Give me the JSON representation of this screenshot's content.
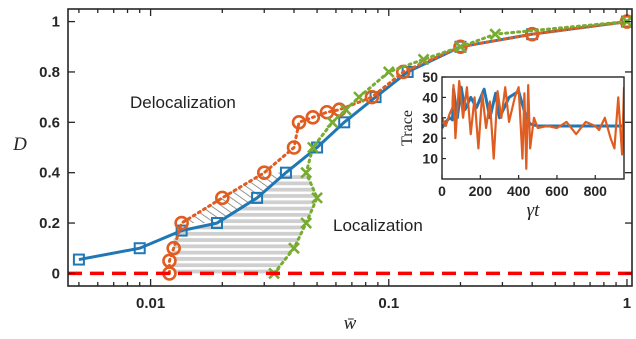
{
  "chart_data": [
    {
      "type": "line",
      "title": "",
      "xlabel": "w̄",
      "ylabel": "D",
      "xscale": "log",
      "xlim": [
        0.0045,
        1.05
      ],
      "ylim": [
        -0.05,
        1.05
      ],
      "xticks": [
        0.01,
        0.1,
        1
      ],
      "xtick_labels": [
        "0.01",
        "0.1",
        "1"
      ],
      "yticks": [
        0,
        0.2,
        0.4,
        0.6,
        0.8,
        1
      ],
      "ytick_labels": [
        "0",
        "0.2",
        "0.4",
        "0.6",
        "0.8",
        "1"
      ],
      "grid": false,
      "annotations": [
        {
          "text": "Delocalization",
          "x": 0.0085,
          "y": 0.64
        },
        {
          "text": "Localization",
          "x": 0.075,
          "y": 0.22
        }
      ],
      "series": [
        {
          "marker": "square",
          "line": "solid",
          "color": "#1f77b4",
          "x": [
            0.005,
            0.009,
            0.0135,
            0.019,
            0.028,
            0.037,
            0.05,
            0.065,
            0.088,
            0.12,
            0.2,
            0.4,
            1.0
          ],
          "y": [
            0.055,
            0.1,
            0.17,
            0.2,
            0.3,
            0.4,
            0.5,
            0.6,
            0.7,
            0.8,
            0.9,
            0.95,
            1.0
          ]
        },
        {
          "marker": "circle",
          "line": "dotted",
          "color": "#e05d21",
          "x": [
            0.012,
            0.012,
            0.0125,
            0.0135,
            0.02,
            0.03,
            0.04,
            0.042,
            0.048,
            0.055,
            0.062,
            0.085,
            0.115,
            0.2,
            0.4,
            1.0
          ],
          "y": [
            0.0,
            0.05,
            0.1,
            0.2,
            0.3,
            0.4,
            0.5,
            0.6,
            0.62,
            0.64,
            0.65,
            0.7,
            0.8,
            0.9,
            0.95,
            1.0
          ]
        },
        {
          "marker": "x",
          "line": "dotted",
          "color": "#77ac30",
          "x": [
            0.033,
            0.04,
            0.045,
            0.05,
            0.045,
            0.048,
            0.058,
            0.066,
            0.075,
            0.1,
            0.14,
            0.2,
            0.28,
            1.0
          ],
          "y": [
            0.0,
            0.1,
            0.2,
            0.3,
            0.4,
            0.5,
            0.6,
            0.65,
            0.7,
            0.8,
            0.85,
            0.9,
            0.95,
            1.0
          ]
        },
        {
          "marker": "none",
          "line": "dashed",
          "color": "#ff0000",
          "x": [
            0.0045,
            1.05
          ],
          "y": [
            0,
            0
          ]
        }
      ],
      "shaded_region": {
        "hatched_from_D": 0.2,
        "hatched_to_D": 0.4,
        "filled_gray_from_D": 0.0,
        "filled_gray_to_D": 0.4
      }
    },
    {
      "type": "line",
      "title": "",
      "xlabel": "γt",
      "ylabel": "Trace",
      "xlim": [
        0,
        950
      ],
      "ylim": [
        0,
        50
      ],
      "xticks": [
        0,
        200,
        400,
        600,
        800
      ],
      "xtick_labels": [
        "0",
        "200",
        "400",
        "600",
        "800"
      ],
      "yticks": [
        10,
        20,
        30,
        40,
        50
      ],
      "ytick_labels": [
        "10",
        "20",
        "30",
        "40",
        "50"
      ],
      "series": [
        {
          "color": "#1f77b4",
          "x": [
            0,
            20,
            40,
            55,
            60,
            80,
            100,
            120,
            150,
            180,
            220,
            250,
            280,
            300,
            350,
            400,
            440,
            460,
            500,
            600,
            700,
            800,
            900,
            950
          ],
          "y": [
            25,
            28,
            30,
            29,
            44,
            30,
            45,
            34,
            40,
            35,
            44,
            30,
            42,
            30,
            40,
            43,
            30,
            27,
            26,
            26,
            26,
            26,
            26,
            26
          ]
        },
        {
          "color": "#e05d21",
          "x": [
            0,
            20,
            40,
            55,
            60,
            70,
            90,
            110,
            130,
            150,
            170,
            190,
            210,
            230,
            250,
            270,
            290,
            310,
            330,
            350,
            380,
            400,
            420,
            430,
            440,
            450,
            460,
            480,
            500,
            550,
            600,
            650,
            700,
            750,
            800,
            820,
            850,
            880,
            900,
            920,
            940,
            950
          ],
          "y": [
            30,
            26,
            32,
            35,
            46,
            20,
            48,
            30,
            45,
            22,
            40,
            15,
            42,
            25,
            38,
            10,
            43,
            30,
            45,
            28,
            40,
            45,
            10,
            42,
            5,
            46,
            15,
            30,
            25,
            26,
            25,
            28,
            22,
            28,
            26,
            24,
            30,
            20,
            15,
            40,
            12,
            45
          ]
        }
      ]
    }
  ]
}
